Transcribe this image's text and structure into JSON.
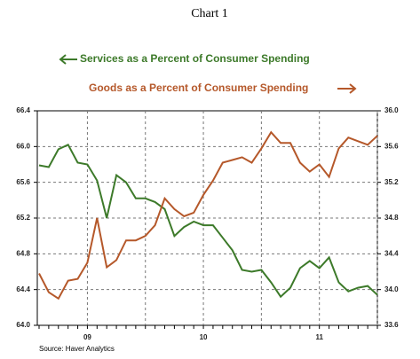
{
  "chart_data": {
    "type": "line",
    "title": "Chart 1",
    "categories": [
      null,
      null,
      null,
      null,
      null,
      "09",
      null,
      null,
      null,
      null,
      null,
      null,
      null,
      null,
      null,
      null,
      null,
      "10",
      null,
      null,
      null,
      null,
      null,
      null,
      null,
      null,
      null,
      null,
      null,
      "11",
      null,
      null,
      null,
      null,
      null,
      null
    ],
    "series": [
      {
        "name": "Services as a Percent of Consumer Spending",
        "color": "#3d7a2a",
        "values": [
          65.79,
          65.77,
          65.97,
          66.02,
          65.82,
          65.8,
          65.62,
          65.2,
          65.68,
          65.6,
          65.42,
          65.42,
          65.38,
          65.3,
          65.0,
          65.1,
          65.16,
          65.12,
          65.12,
          64.98,
          64.84,
          64.62,
          64.6,
          64.62,
          64.48,
          64.32,
          64.42,
          64.64,
          64.72,
          64.64,
          64.76,
          64.48,
          64.38,
          64.42,
          64.44,
          64.34
        ]
      },
      {
        "name": "Goods as a Percent of Consumer Spending",
        "color": "#b5582a",
        "axis": "y2",
        "values": [
          34.18,
          33.97,
          33.9,
          34.1,
          34.12,
          34.3,
          34.8,
          34.25,
          34.33,
          34.55,
          34.55,
          34.6,
          34.72,
          35.02,
          34.9,
          34.82,
          34.86,
          35.06,
          35.22,
          35.42,
          35.45,
          35.48,
          35.42,
          35.58,
          35.76,
          35.64,
          35.64,
          35.42,
          35.32,
          35.4,
          35.26,
          35.58,
          35.7,
          35.66,
          35.62,
          35.72
        ]
      }
    ],
    "ylim": [
      64.0,
      66.4
    ],
    "yticks": [
      {
        "value": 64.0,
        "label": "64.0"
      },
      {
        "value": 64.4,
        "label": "64.4"
      },
      {
        "value": 64.8,
        "label": "64.8"
      },
      {
        "value": 65.2,
        "label": "65.2"
      },
      {
        "value": 65.6,
        "label": "65.6"
      },
      {
        "value": 66.0,
        "label": "66.0"
      },
      {
        "value": 66.4,
        "label": "66.4"
      }
    ],
    "y2lim": [
      33.6,
      36.0
    ],
    "y2ticks": [
      33.6,
      {
        "value": 34.0,
        "label": "34.0"
      },
      34.4,
      34.8,
      35.2,
      35.6,
      {
        "value": 36.0,
        "label": "36.0"
      }
    ],
    "grid": true,
    "source": "Source: Haver Analytics"
  }
}
